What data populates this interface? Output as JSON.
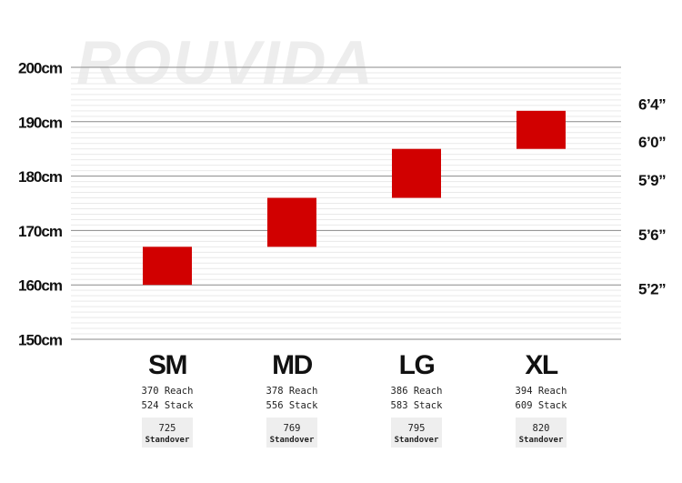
{
  "watermark": "ROUVIDA",
  "chart_data": {
    "type": "range-bar",
    "y_unit": "cm",
    "ylim": [
      150,
      200
    ],
    "y_ticks": [
      {
        "value": 200,
        "label": "200cm"
      },
      {
        "value": 190,
        "label": "190cm"
      },
      {
        "value": 180,
        "label": "180cm"
      },
      {
        "value": 170,
        "label": "170cm"
      },
      {
        "value": 160,
        "label": "160cm"
      },
      {
        "value": 150,
        "label": "150cm"
      }
    ],
    "minor_grid_step": 1,
    "feet_labels": [
      {
        "label": "6’4”",
        "value": 193
      },
      {
        "label": "6’0”",
        "value": 186
      },
      {
        "label": "5’9”",
        "value": 179
      },
      {
        "label": "5’6”",
        "value": 169
      },
      {
        "label": "5’2”",
        "value": 159
      }
    ],
    "bar_color": "#d10000",
    "sizes": [
      {
        "name": "SM",
        "low": 160,
        "high": 167,
        "reach": "370 Reach",
        "stack": "524 Stack",
        "standover": "725",
        "standover_label": "Standover"
      },
      {
        "name": "MD",
        "low": 167,
        "high": 176,
        "reach": "378 Reach",
        "stack": "556 Stack",
        "standover": "769",
        "standover_label": "Standover"
      },
      {
        "name": "LG",
        "low": 176,
        "high": 185,
        "reach": "386 Reach",
        "stack": "583 Stack",
        "standover": "795",
        "standover_label": "Standover"
      },
      {
        "name": "XL",
        "low": 185,
        "high": 192,
        "reach": "394 Reach",
        "stack": "609 Stack",
        "standover": "820",
        "standover_label": "Standover"
      }
    ]
  }
}
